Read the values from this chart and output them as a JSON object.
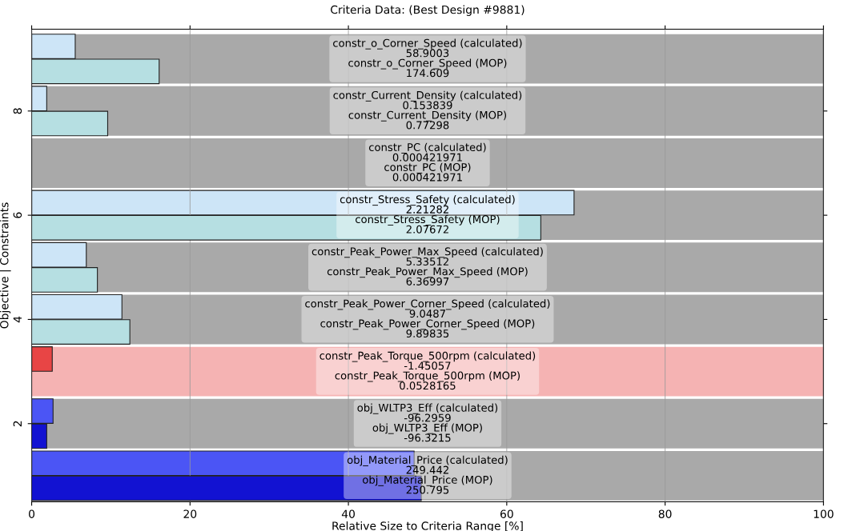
{
  "chart_data": {
    "type": "bar",
    "orientation": "horizontal",
    "title": "Criteria Data: (Best Design #9881)",
    "xlabel": "Relative Size to Criteria Range [%]",
    "ylabel": "Objective | Constraints",
    "x": [
      1,
      2,
      3,
      4,
      5,
      6,
      7,
      8,
      9
    ],
    "series": [
      {
        "colors": [
          "#4b55f5",
          "#4b55f5",
          "#e84545",
          "#cde5f7",
          "#cde5f7",
          "#cde5f7",
          "#cde5f7",
          "#cde5f7",
          "#cde5f7"
        ],
        "values": [
          48.3,
          2.7,
          2.6,
          11.4,
          6.9,
          68.5,
          0,
          1.9,
          5.5
        ]
      },
      {
        "colors": [
          "#1212d2",
          "#1212d2",
          "#e84545",
          "#b6dfe2",
          "#b6dfe2",
          "#b6dfe2",
          "#b6dfe2",
          "#b6dfe2",
          "#b6dfe2"
        ],
        "values": [
          49.2,
          1.9,
          0,
          12.4,
          8.3,
          64.3,
          0,
          9.6,
          16.1
        ]
      }
    ],
    "bands": [
      {
        "axis": "y",
        "from": 0.525,
        "to": 1.475,
        "color": "#a9a9a9"
      },
      {
        "axis": "y",
        "from": 1.525,
        "to": 2.475,
        "color": "#a9a9a9"
      },
      {
        "axis": "y",
        "from": 2.525,
        "to": 3.475,
        "color": "#f5b3b3"
      },
      {
        "axis": "y",
        "from": 3.525,
        "to": 4.475,
        "color": "#a9a9a9"
      },
      {
        "axis": "y",
        "from": 4.525,
        "to": 5.475,
        "color": "#a9a9a9"
      },
      {
        "axis": "y",
        "from": 5.525,
        "to": 6.475,
        "color": "#a9a9a9"
      },
      {
        "axis": "y",
        "from": 6.525,
        "to": 7.475,
        "color": "#a9a9a9"
      },
      {
        "axis": "y",
        "from": 7.525,
        "to": 8.475,
        "color": "#a9a9a9"
      },
      {
        "axis": "y",
        "from": 8.525,
        "to": 9.475,
        "color": "#a9a9a9"
      }
    ],
    "xlim": [
      0,
      100
    ],
    "xticks": [
      0,
      20,
      40,
      60,
      80,
      100
    ],
    "ylim": [
      0.5,
      9.57
    ],
    "yticks": [
      2,
      4,
      6,
      8
    ],
    "grid": "x",
    "annotations": [
      "obj_Material_Price (calculated)\n249.442\nobj_Material_Price (MOP)\n250.795",
      "obj_WLTP3_Eff (calculated)\n-96.2959\nobj_WLTP3_Eff (MOP)\n-96.3215",
      "constr_Peak_Torque_500rpm (calculated)\n-1.45057\nconstr_Peak_Torque_500rpm (MOP)\n0.0528165",
      "constr_Peak_Power_Corner_Speed (calculated)\n9.0487\nconstr_Peak_Power_Corner_Speed (MOP)\n9.89835",
      "constr_Peak_Power_Max_Speed (calculated)\n5.33512\nconstr_Peak_Power_Max_Speed (MOP)\n6.36997",
      "constr_Stress_Safety (calculated)\n2.21282\nconstr_Stress_Safety (MOP)\n2.07672",
      "constr_PC (calculated)\n0.000421971\nconstr_PC (MOP)\n0.000421971",
      "constr_Current_Density (calculated)\n0.153839\nconstr_Current_Density (MOP)\n0.77298",
      "constr_o_Corner_Speed (calculated)\n58.9003\nconstr_o_Corner_Speed (MOP)\n174.609"
    ]
  }
}
